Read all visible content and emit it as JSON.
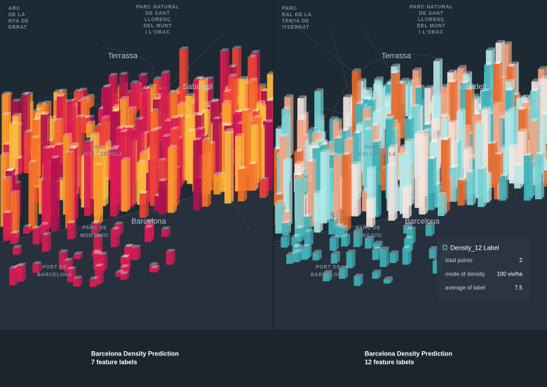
{
  "panels": [
    {
      "map_labels": [
        {
          "lines": [
            "PARC NATURAL",
            "DE SANT",
            "LLORENÇ",
            "DEL MUNT",
            "I L'OBAC"
          ]
        },
        {
          "lines": [
            "ARC",
            "DE LA",
            "NYA DE",
            "ERRAT"
          ]
        },
        {
          "lines": [
            "Terrassa"
          ]
        },
        {
          "lines": [
            "Sabadell"
          ]
        },
        {
          "lines": [
            "PARC DE",
            "COLLSEROLA"
          ]
        },
        {
          "lines": [
            "Barcelona"
          ]
        },
        {
          "lines": [
            "PARC DE",
            "MONTJUÏC"
          ]
        },
        {
          "lines": [
            "PORT DE",
            "BARCELONA"
          ]
        }
      ],
      "caption": {
        "title": "Barcelona Density Prediction",
        "subtitle": "7 feature labels"
      }
    },
    {
      "map_labels": [
        {
          "lines": [
            "PARC NATURAL",
            "DE SANT",
            "LLORENÇ",
            "DEL MUNT",
            "I L'OBAC"
          ]
        },
        {
          "lines": [
            "PARC",
            "RAL DE LA",
            "TANYA DE",
            "ITSERRAT"
          ]
        },
        {
          "lines": [
            "Terrassa"
          ]
        },
        {
          "lines": [
            "Sabadell"
          ]
        },
        {
          "lines": [
            "PARC DE",
            "COLLSEROLA"
          ]
        },
        {
          "lines": [
            "Barcelona"
          ]
        },
        {
          "lines": [
            "PARC DE",
            "MONTJUÏC"
          ]
        },
        {
          "lines": [
            "PORT DE",
            "BARCELONA"
          ]
        }
      ],
      "caption": {
        "title": "Barcelona Density Prediction",
        "subtitle": "12 feature labels"
      },
      "tooltip": {
        "title": "Density_12 Label",
        "rows": [
          {
            "label": "total points",
            "value": "2"
          },
          {
            "label": "mode of density",
            "value": "100 viv/ha"
          },
          {
            "label": "average of label",
            "value": "7.5"
          }
        ]
      }
    }
  ]
}
